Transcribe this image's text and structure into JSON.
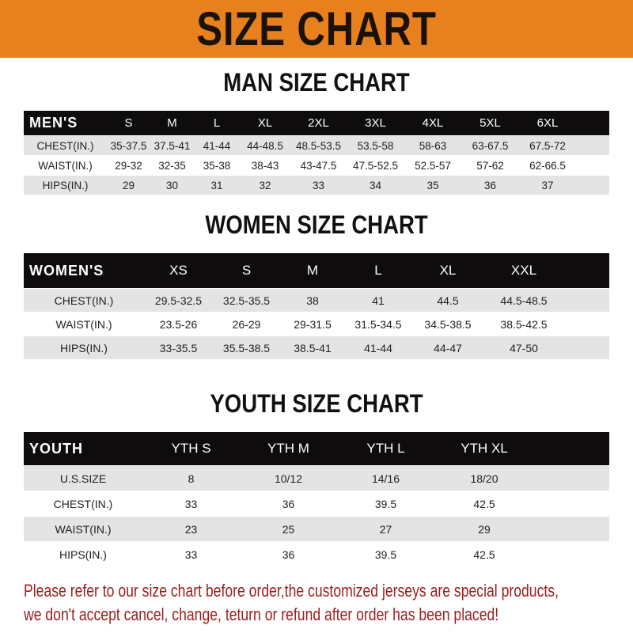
{
  "title": "SIZE CHART",
  "colors": {
    "banner": "#e8811d",
    "header_row": "#0e0c0c",
    "note": "#9c1d1d"
  },
  "men": {
    "title": "MAN SIZE CHART",
    "header": [
      "MEN'S",
      "S",
      "M",
      "L",
      "XL",
      "2XL",
      "3XL",
      "4XL",
      "5XL",
      "6XL"
    ],
    "rows": [
      [
        "CHEST(IN.)",
        "35-37.5",
        "37.5-41",
        "41-44",
        "44-48.5",
        "48.5-53.5",
        "53.5-58",
        "58-63",
        "63-67.5",
        "67.5-72"
      ],
      [
        "WAIST(IN.)",
        "29-32",
        "32-35",
        "35-38",
        "38-43",
        "43-47.5",
        "47.5-52.5",
        "52.5-57",
        "57-62",
        "62-66.5"
      ],
      [
        "HIPS(IN.)",
        "29",
        "30",
        "31",
        "32",
        "33",
        "34",
        "35",
        "36",
        "37"
      ]
    ]
  },
  "women": {
    "title": "WOMEN SIZE CHART",
    "header": [
      "WOMEN'S",
      "XS",
      "S",
      "M",
      "L",
      "XL",
      "XXL"
    ],
    "rows": [
      [
        "CHEST(IN.)",
        "29.5-32.5",
        "32.5-35.5",
        "38",
        "41",
        "44.5",
        "44.5-48.5"
      ],
      [
        "WAIST(IN.)",
        "23.5-26",
        "26-29",
        "29-31.5",
        "31.5-34.5",
        "34.5-38.5",
        "38.5-42.5"
      ],
      [
        "HIPS(IN.)",
        "33-35.5",
        "35.5-38.5",
        "38.5-41",
        "41-44",
        "44-47",
        "47-50"
      ]
    ]
  },
  "youth": {
    "title": "YOUTH SIZE CHART",
    "header": [
      "YOUTH",
      "YTH S",
      "YTH M",
      "YTH L",
      "YTH XL"
    ],
    "rows": [
      [
        "U.S.SIZE",
        "8",
        "10/12",
        "14/16",
        "18/20"
      ],
      [
        "CHEST(IN.)",
        "33",
        "36",
        "39.5",
        "42.5"
      ],
      [
        "WAIST(IN.)",
        "23",
        "25",
        "27",
        "29"
      ],
      [
        "HIPS(IN.)",
        "33",
        "36",
        "39.5",
        "42.5"
      ]
    ]
  },
  "note": {
    "line1": "Please refer to our size chart before order,the customized jerseys are special products,",
    "line2": "we don't accept cancel, change, teturn or refund after order has been placed!"
  }
}
